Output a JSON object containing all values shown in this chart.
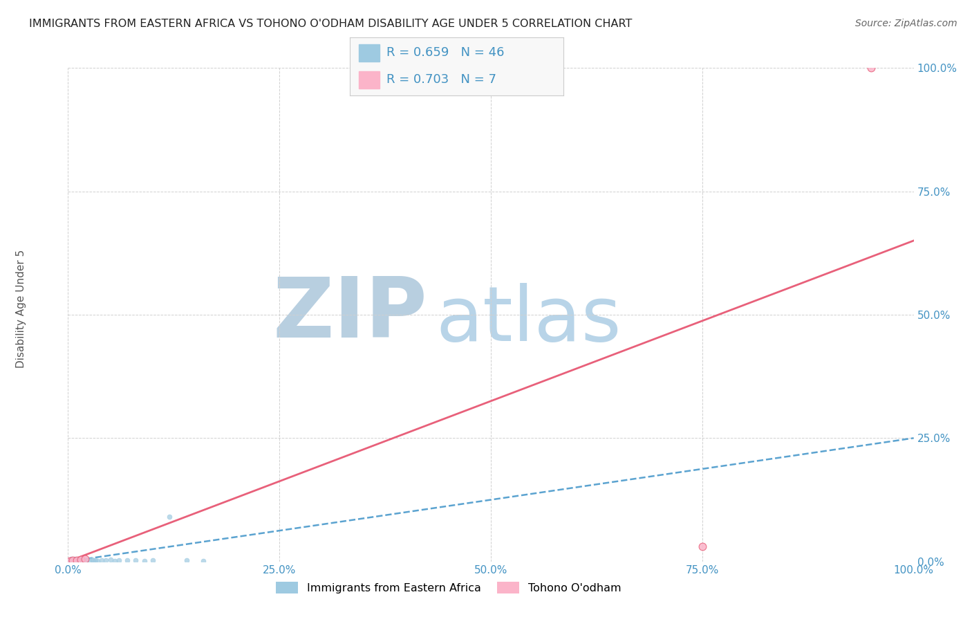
{
  "title": "IMMIGRANTS FROM EASTERN AFRICA VS TOHONO O'ODHAM DISABILITY AGE UNDER 5 CORRELATION CHART",
  "source": "Source: ZipAtlas.com",
  "ylabel": "Disability Age Under 5",
  "legend_label1": "Immigrants from Eastern Africa",
  "legend_label2": "Tohono O'odham",
  "R1": 0.659,
  "N1": 46,
  "R2": 0.703,
  "N2": 7,
  "blue_scatter_x": [
    0.1,
    0.2,
    0.2,
    0.3,
    0.3,
    0.4,
    0.4,
    0.5,
    0.5,
    0.6,
    0.6,
    0.7,
    0.8,
    0.8,
    0.9,
    1.0,
    1.0,
    1.1,
    1.2,
    1.3,
    1.4,
    1.5,
    1.6,
    1.7,
    1.8,
    1.9,
    2.0,
    2.1,
    2.2,
    2.5,
    2.8,
    3.0,
    3.2,
    3.5,
    4.0,
    4.5,
    5.0,
    5.5,
    6.0,
    7.0,
    8.0,
    9.0,
    10.0,
    12.0,
    14.0,
    16.0
  ],
  "blue_scatter_y": [
    0.1,
    0.2,
    0.3,
    0.1,
    0.4,
    0.2,
    0.5,
    0.1,
    0.3,
    0.2,
    0.4,
    0.1,
    0.3,
    0.5,
    0.2,
    0.1,
    0.4,
    0.2,
    0.3,
    0.1,
    0.4,
    0.2,
    0.5,
    0.1,
    0.3,
    0.2,
    0.4,
    0.1,
    0.3,
    0.2,
    0.4,
    0.3,
    0.2,
    0.1,
    0.3,
    0.2,
    0.4,
    0.1,
    0.2,
    0.3,
    0.2,
    0.1,
    0.3,
    9.0,
    0.2,
    0.1
  ],
  "pink_scatter_x": [
    0.2,
    0.5,
    1.0,
    1.5,
    2.0,
    75.0,
    95.0
  ],
  "pink_scatter_y": [
    0.1,
    0.2,
    0.3,
    0.4,
    0.5,
    3.0,
    100.0
  ],
  "blue_line_x": [
    0,
    100
  ],
  "blue_line_y": [
    0,
    25.0
  ],
  "pink_line_x": [
    0,
    100
  ],
  "pink_line_y": [
    0,
    65.0
  ],
  "xlim": [
    0,
    100
  ],
  "ylim": [
    0,
    100
  ],
  "xticks": [
    0,
    25,
    50,
    75,
    100
  ],
  "yticks": [
    0,
    25,
    50,
    75,
    100
  ],
  "xticklabels": [
    "0.0%",
    "25.0%",
    "50.0%",
    "75.0%",
    "100.0%"
  ],
  "yticklabels": [
    "0.0%",
    "25.0%",
    "50.0%",
    "75.0%",
    "100.0%"
  ],
  "color_blue": "#9ecae1",
  "color_blue_line": "#5ba3d0",
  "color_pink": "#fbb4c9",
  "color_pink_line": "#e8607a",
  "color_tick": "#4393c3",
  "color_title": "#222222",
  "color_source": "#666666",
  "watermark_zip": "#b8cfe0",
  "watermark_atlas": "#b8d4e8",
  "background_color": "#ffffff",
  "grid_color": "#d0d0d0",
  "legend_box_color": "#f8f8f8",
  "legend_border_color": "#cccccc"
}
